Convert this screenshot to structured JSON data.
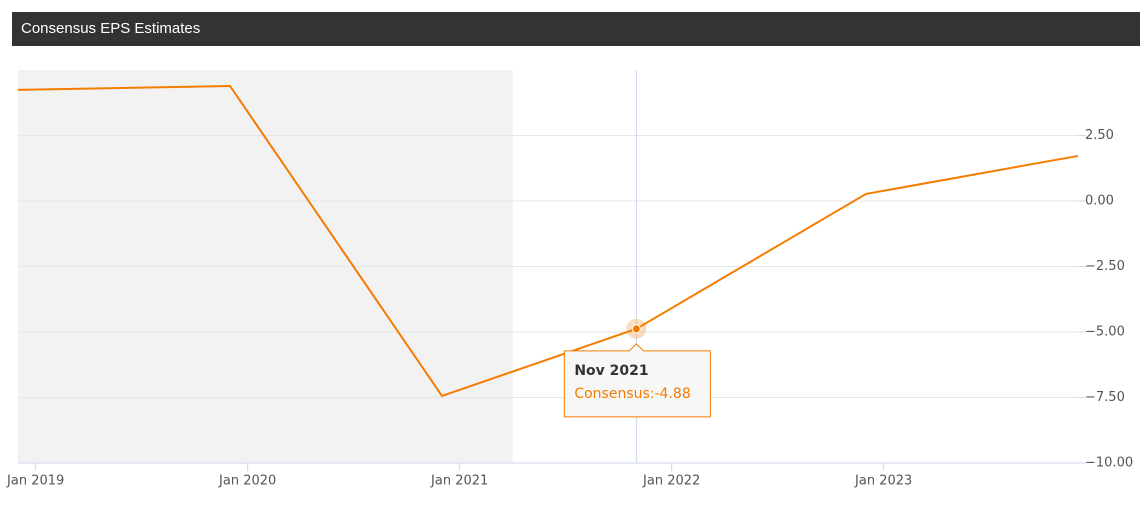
{
  "header": {
    "title": "Consensus EPS Estimates"
  },
  "chart_data": {
    "type": "line",
    "x": [
      "2018-12",
      "2019-12",
      "2020-12",
      "2021-11",
      "2022-12",
      "2023-12"
    ],
    "series": [
      {
        "name": "Consensus",
        "color": "#f57c00",
        "values": [
          4.24,
          4.39,
          -7.44,
          -4.88,
          0.27,
          1.72
        ]
      }
    ],
    "xlim": [
      "2018-12",
      "2023-12"
    ],
    "xticks": [
      {
        "value": "2019-01",
        "label": "Jan 2019"
      },
      {
        "value": "2020-01",
        "label": "Jan 2020"
      },
      {
        "value": "2021-01",
        "label": "Jan 2021"
      },
      {
        "value": "2022-01",
        "label": "Jan 2022"
      },
      {
        "value": "2023-01",
        "label": "Jan 2023"
      }
    ],
    "ylim": [
      -10,
      5
    ],
    "yticks": [
      {
        "value": 2.5,
        "label": "2.50"
      },
      {
        "value": 0,
        "label": "0.00"
      },
      {
        "value": -2.5,
        "label": "−2.50"
      },
      {
        "value": -5,
        "label": "−5.00"
      },
      {
        "value": -7.5,
        "label": "−7.50"
      },
      {
        "value": -10,
        "label": "−10.00"
      }
    ],
    "grid": true,
    "shaded_range": [
      "2018-12",
      "2021-04"
    ],
    "tooltip": {
      "point": 3,
      "title": "Nov 2021",
      "label": "Consensus:"
    }
  }
}
